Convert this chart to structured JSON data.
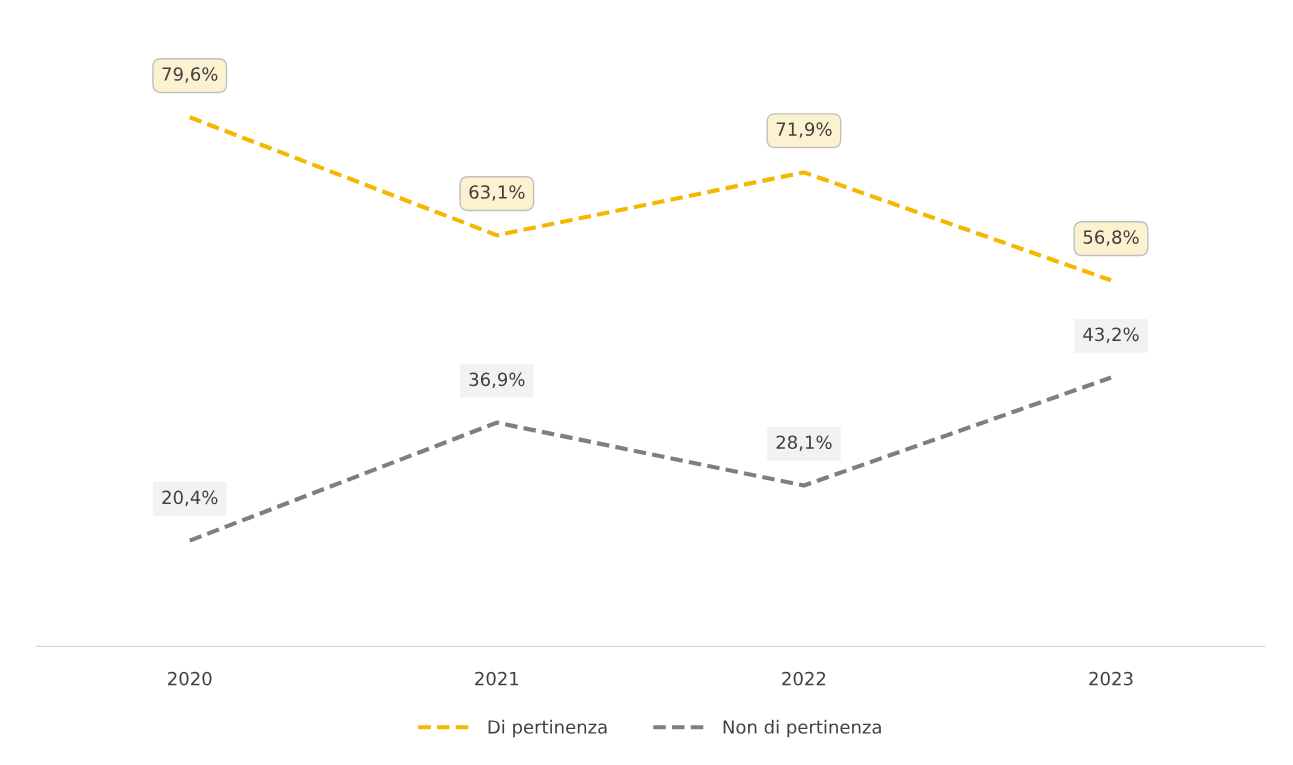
{
  "chart_data": {
    "type": "line",
    "categories": [
      "2020",
      "2021",
      "2022",
      "2023"
    ],
    "series": [
      {
        "name": "Di pertinenza",
        "color": "#f5b800",
        "values": [
          79.6,
          63.1,
          71.9,
          56.8
        ],
        "value_labels": [
          "79,6%",
          "63,1%",
          "71,9%",
          "56,8%"
        ]
      },
      {
        "name": "Non di pertinenza",
        "color": "#7f7f7f",
        "values": [
          20.4,
          36.9,
          28.1,
          43.2
        ],
        "value_labels": [
          "20,4%",
          "36,9%",
          "28,1%",
          "43,2%"
        ]
      }
    ],
    "tick_labels": "x",
    "line_style": "dashed",
    "marker": "none",
    "grid": false,
    "legend": "bottom"
  }
}
